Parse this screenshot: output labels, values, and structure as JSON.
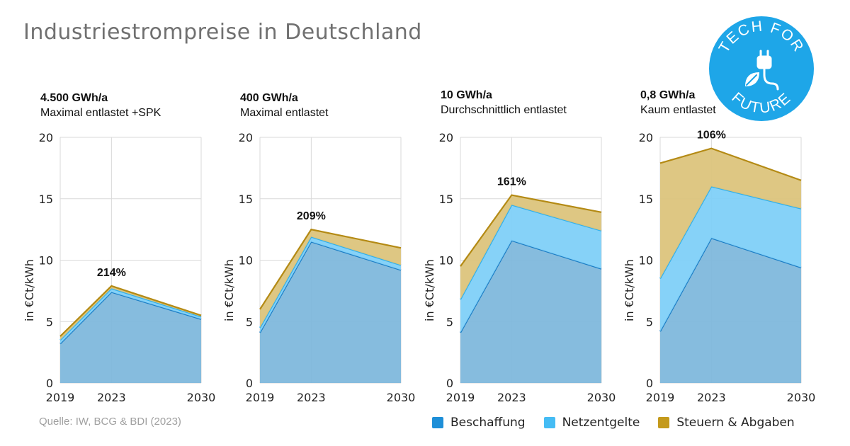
{
  "title": "Industriestrompreise in Deutschland",
  "source": "Quelle: IW, BCG & BDI (2023)",
  "logo": {
    "text_top": "TECH FOR",
    "text_bottom": "FUTURE",
    "icon": "plug-leaf-icon",
    "color": "#1ea6e8"
  },
  "legend": [
    {
      "name": "Beschaffung",
      "color": "#1e8fd8"
    },
    {
      "name": "Netzentgelte",
      "color": "#45bcf4"
    },
    {
      "name": "Steuern & Abgaben",
      "color": "#c49a1c"
    }
  ],
  "chart_data": [
    {
      "type": "area",
      "stacked": true,
      "header_value": "4.500 GWh/a",
      "header_label": "Maximal entlastet +SPK",
      "x": [
        2019,
        2023,
        2030
      ],
      "ylim": [
        0,
        20
      ],
      "yticks": [
        0,
        5,
        10,
        15,
        20
      ],
      "ylabel": "in €Ct/kWh",
      "annotation": {
        "x": 2023,
        "text": "214%"
      },
      "series": [
        {
          "name": "Beschaffung",
          "values": [
            3.2,
            7.4,
            5.2
          ]
        },
        {
          "name": "Netzentgelte",
          "values": [
            0.3,
            0.3,
            0.2
          ]
        },
        {
          "name": "Steuern & Abgaben",
          "values": [
            0.3,
            0.2,
            0.1
          ]
        }
      ]
    },
    {
      "type": "area",
      "stacked": true,
      "header_value": "400 GWh/a",
      "header_label": "Maximal entlastet",
      "x": [
        2019,
        2023,
        2030
      ],
      "ylim": [
        0,
        20
      ],
      "yticks": [
        0,
        5,
        10,
        15,
        20
      ],
      "ylabel": "in €Ct/kWh",
      "annotation": {
        "x": 2023,
        "text": "209%"
      },
      "series": [
        {
          "name": "Beschaffung",
          "values": [
            4.1,
            11.5,
            9.2
          ]
        },
        {
          "name": "Netzentgelte",
          "values": [
            0.4,
            0.4,
            0.4
          ]
        },
        {
          "name": "Steuern & Abgaben",
          "values": [
            1.5,
            0.6,
            1.4
          ]
        }
      ]
    },
    {
      "type": "area",
      "stacked": true,
      "header_value": "10 GWh/a",
      "header_label": "Durchschnittlich entlastet",
      "x": [
        2019,
        2023,
        2030
      ],
      "ylim": [
        0,
        20
      ],
      "yticks": [
        0,
        5,
        10,
        15,
        20
      ],
      "ylabel": "in €Ct/kWh",
      "annotation": {
        "x": 2023,
        "text": "161%"
      },
      "series": [
        {
          "name": "Beschaffung",
          "values": [
            4.1,
            11.6,
            9.3
          ]
        },
        {
          "name": "Netzentgelte",
          "values": [
            2.7,
            2.9,
            3.1
          ]
        },
        {
          "name": "Steuern & Abgaben",
          "values": [
            2.7,
            0.8,
            1.5
          ]
        }
      ]
    },
    {
      "type": "area",
      "stacked": true,
      "header_value": "0,8 GWh/a",
      "header_label": "Kaum entlastet",
      "x": [
        2019,
        2023,
        2030
      ],
      "ylim": [
        0,
        20
      ],
      "yticks": [
        0,
        5,
        10,
        15,
        20
      ],
      "ylabel": "in €Ct/kWh",
      "annotation": {
        "x": 2023,
        "text": "106%"
      },
      "series": [
        {
          "name": "Beschaffung",
          "values": [
            4.2,
            11.8,
            9.4
          ]
        },
        {
          "name": "Netzentgelte",
          "values": [
            4.3,
            4.2,
            4.8
          ]
        },
        {
          "name": "Steuern & Abgaben",
          "values": [
            9.4,
            3.1,
            2.3
          ]
        }
      ]
    }
  ]
}
